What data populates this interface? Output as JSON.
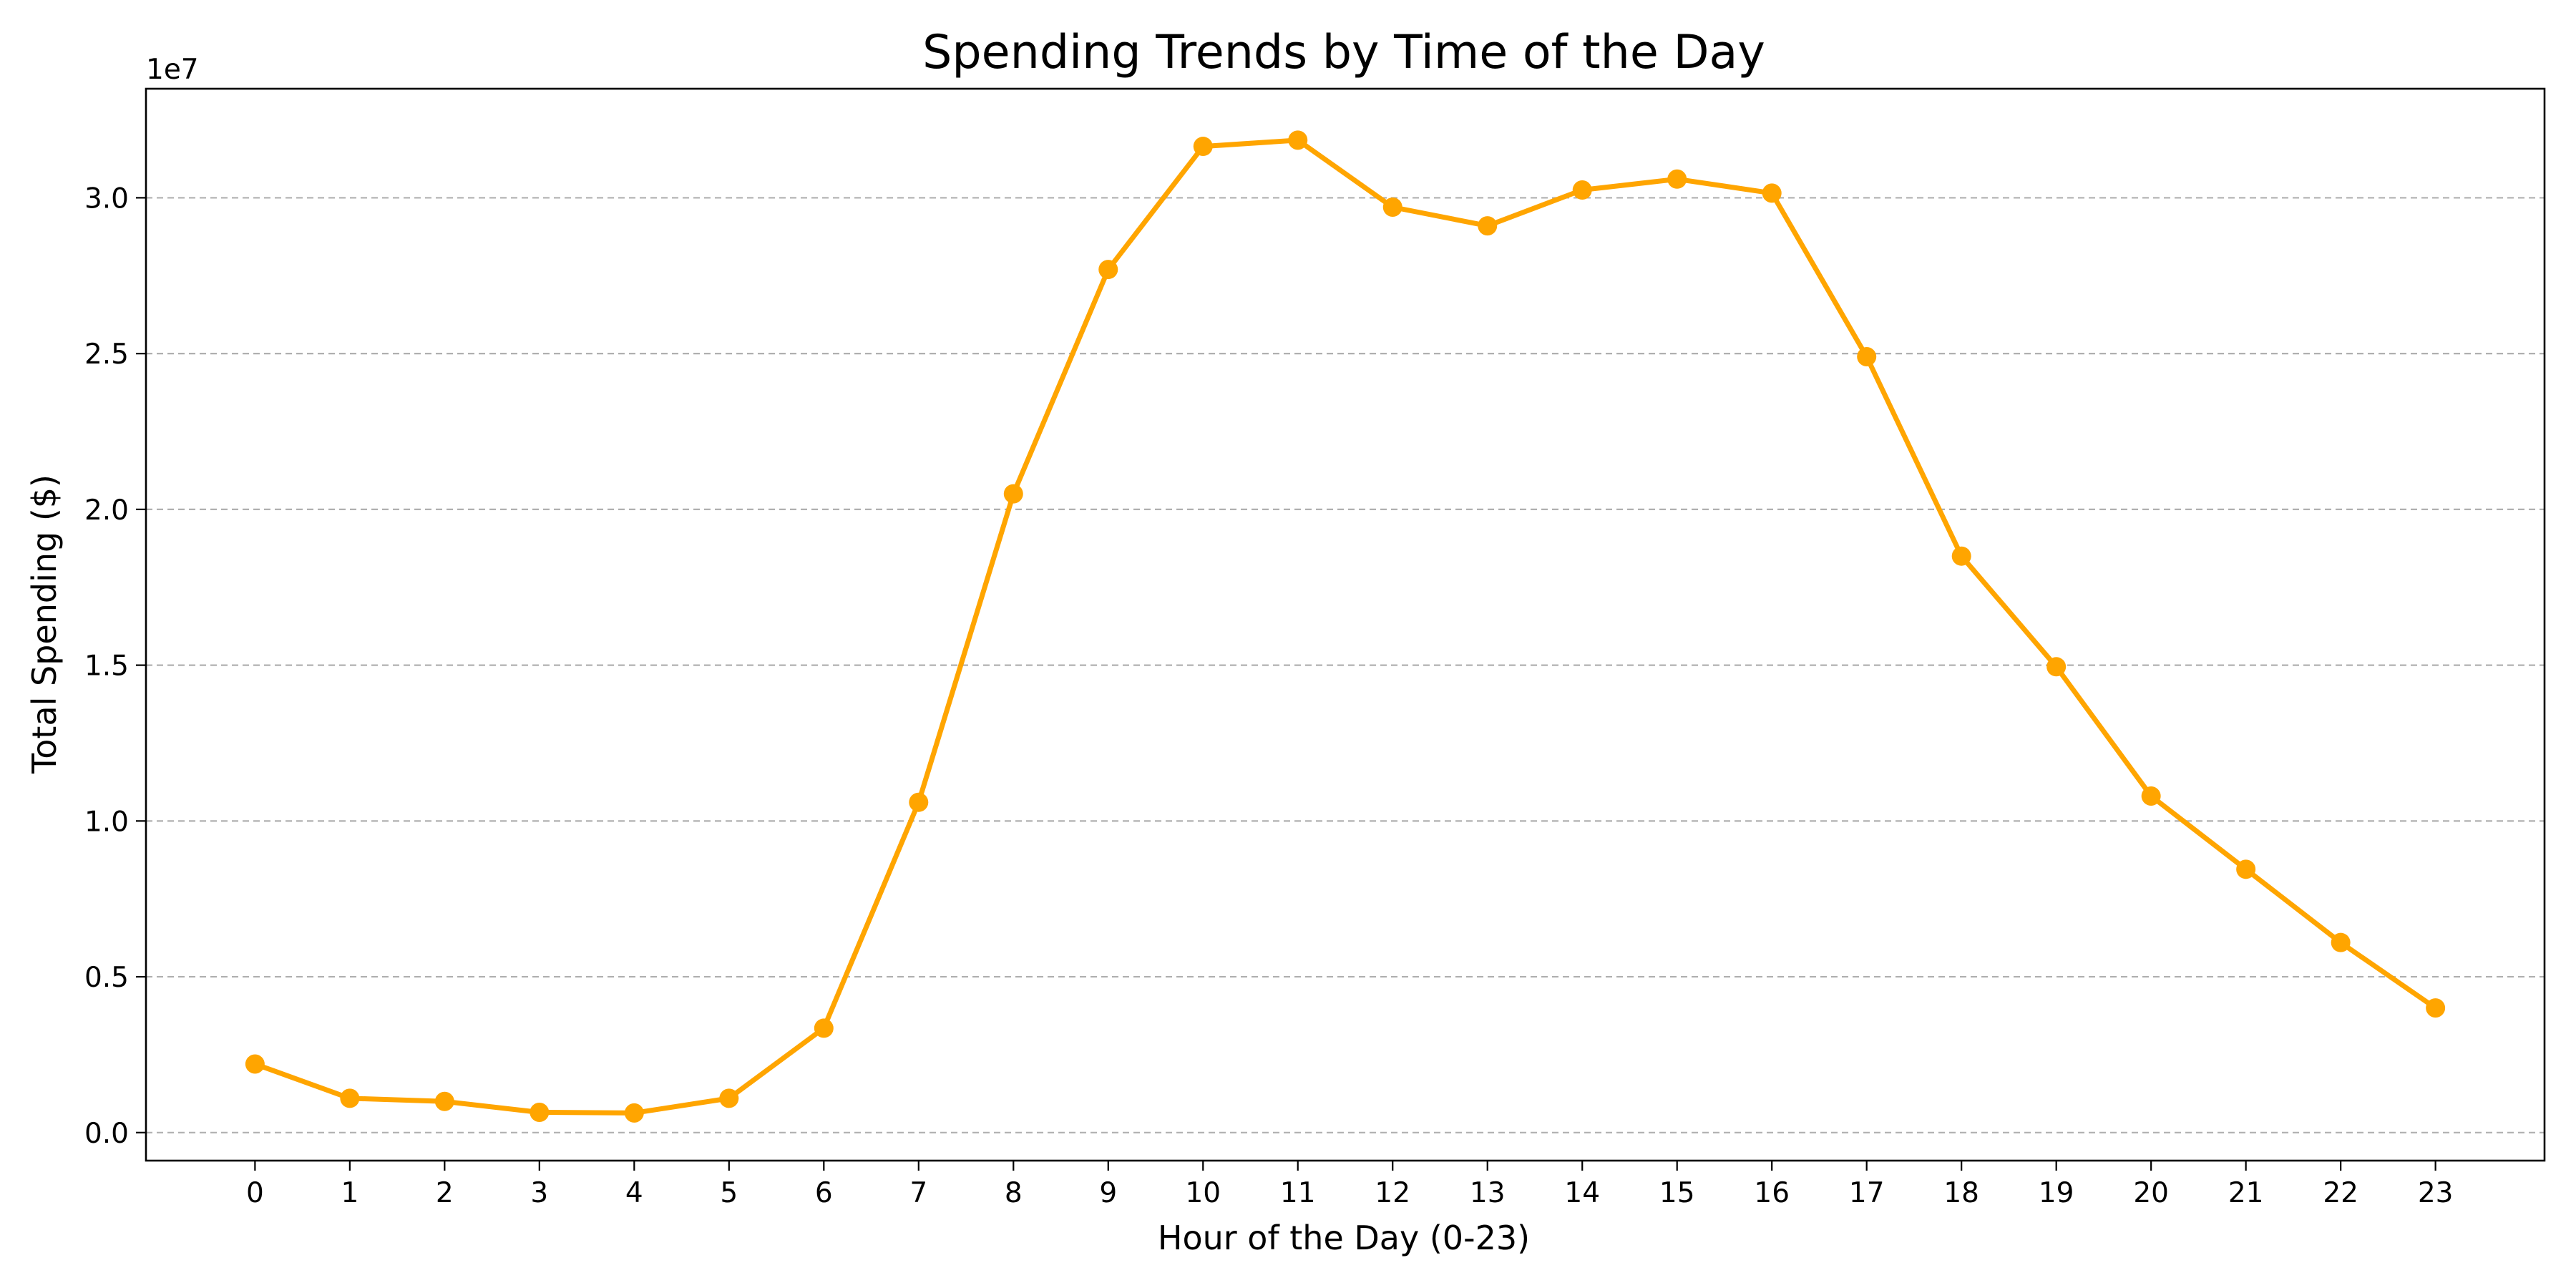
{
  "chart_data": {
    "type": "line",
    "title": "Spending Trends by Time of the Day",
    "xlabel": "Hour of the Day (0-23)",
    "ylabel": "Total Spending ($)",
    "y_offset_label": "1e7",
    "x": [
      0,
      1,
      2,
      3,
      4,
      5,
      6,
      7,
      8,
      9,
      10,
      11,
      12,
      13,
      14,
      15,
      16,
      17,
      18,
      19,
      20,
      21,
      22,
      23
    ],
    "x_tick_labels": [
      "0",
      "1",
      "2",
      "3",
      "4",
      "5",
      "6",
      "7",
      "8",
      "9",
      "10",
      "11",
      "12",
      "13",
      "14",
      "15",
      "16",
      "17",
      "18",
      "19",
      "20",
      "21",
      "22",
      "23"
    ],
    "y_ticks": [
      0,
      5000000,
      10000000,
      15000000,
      20000000,
      25000000,
      30000000
    ],
    "y_tick_labels": [
      "0.0",
      "0.5",
      "1.0",
      "1.5",
      "2.0",
      "2.5",
      "3.0"
    ],
    "ylim": [
      -900000,
      33500000
    ],
    "xlim": [
      -1.15,
      24.15
    ],
    "grid": "horizontal-dashed",
    "legend": "none",
    "series": [
      {
        "color": "#FFA500",
        "marker": "circle",
        "values": [
          2200000,
          1100000,
          1000000,
          650000,
          630000,
          1100000,
          3350000,
          10600000,
          20500000,
          27700000,
          31650000,
          31850000,
          29700000,
          29100000,
          30250000,
          30600000,
          30150000,
          24900000,
          18500000,
          14950000,
          10800000,
          8450000,
          6100000,
          4000000
        ]
      }
    ]
  }
}
